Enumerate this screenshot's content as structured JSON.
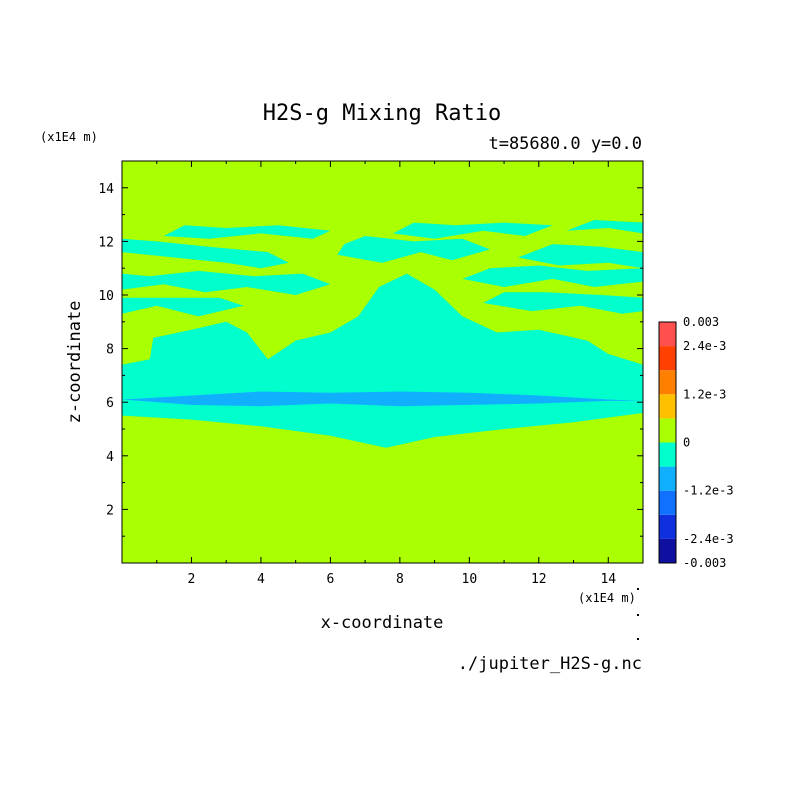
{
  "chart_data": {
    "type": "heatmap",
    "title": "H2S-g Mixing Ratio",
    "subtitle": "t=85680.0 y=0.0",
    "xlabel": "x-coordinate",
    "ylabel": "z-coordinate",
    "x_unit": "(x1E4 m)",
    "y_unit": "(x1E4 m)",
    "xlim": [
      0,
      15
    ],
    "ylim": [
      0,
      15
    ],
    "x_ticks": [
      "2",
      "4",
      "6",
      "8",
      "10",
      "12",
      "14"
    ],
    "y_ticks": [
      "2",
      "4",
      "6",
      "8",
      "10",
      "12",
      "14"
    ],
    "x_tick_values": [
      2,
      4,
      6,
      8,
      10,
      12,
      14
    ],
    "y_tick_values": [
      2,
      4,
      6,
      8,
      10,
      12,
      14
    ],
    "source_file": "./jupiter_H2S-g.nc",
    "colorbar": {
      "levels": [
        -0.003,
        -0.0024,
        -0.0018,
        -0.0012,
        -0.0006,
        0,
        0.0006,
        0.0012,
        0.0018,
        0.0024,
        0.003
      ],
      "colors": [
        "#1010a0",
        "#1030e0",
        "#1070ff",
        "#10b0ff",
        "#00ffcc",
        "#aaff00",
        "#ffc000",
        "#ff8000",
        "#ff4000",
        "#ff5050"
      ],
      "labels": [
        {
          "text": "0.003",
          "value": 0.003
        },
        {
          "text": "2.4e-3",
          "value": 0.0024
        },
        {
          "text": "1.2e-3",
          "value": 0.0012
        },
        {
          "text": "0",
          "value": 0
        },
        {
          "text": "-1.2e-3",
          "value": -0.0012
        },
        {
          "text": "-2.4e-3",
          "value": -0.0024
        },
        {
          "text": "-0.003",
          "value": -0.003
        }
      ]
    },
    "regions": {
      "background_level": 0.0003,
      "negative_level": -0.0003,
      "strong_negative_level": -0.0009,
      "cyan_bottom_boundary": [
        [
          0,
          5.5
        ],
        [
          2,
          5.35
        ],
        [
          4,
          5.1
        ],
        [
          6,
          4.75
        ],
        [
          7.6,
          4.3
        ],
        [
          9,
          4.7
        ],
        [
          11,
          5.0
        ],
        [
          13,
          5.25
        ],
        [
          15,
          5.6
        ]
      ],
      "blue_band_top": [
        [
          0,
          6.1
        ],
        [
          2,
          6.25
        ],
        [
          4,
          6.4
        ],
        [
          6,
          6.35
        ],
        [
          8,
          6.4
        ],
        [
          10,
          6.35
        ],
        [
          12,
          6.25
        ],
        [
          14,
          6.1
        ],
        [
          15,
          6.05
        ]
      ],
      "blue_band_bottom": [
        [
          0,
          6.1
        ],
        [
          2,
          5.9
        ],
        [
          4,
          5.85
        ],
        [
          6,
          5.95
        ],
        [
          8,
          5.85
        ],
        [
          10,
          5.9
        ],
        [
          12,
          5.95
        ],
        [
          14,
          6.05
        ],
        [
          15,
          6.05
        ]
      ],
      "cyan_top_boundary": [
        [
          0,
          7.4
        ],
        [
          0.8,
          7.6
        ],
        [
          0.9,
          8.4
        ],
        [
          2,
          8.7
        ],
        [
          3,
          9.0
        ],
        [
          3.6,
          8.6
        ],
        [
          4.2,
          7.6
        ],
        [
          5,
          8.3
        ],
        [
          6,
          8.6
        ],
        [
          6.8,
          9.2
        ],
        [
          7.4,
          10.3
        ],
        [
          8.2,
          10.8
        ],
        [
          9,
          10.2
        ],
        [
          9.8,
          9.2
        ],
        [
          10.8,
          8.6
        ],
        [
          12,
          8.7
        ],
        [
          13.4,
          8.3
        ],
        [
          14,
          7.8
        ],
        [
          15,
          7.4
        ]
      ],
      "streaks": [
        [
          [
            0,
            11.6
          ],
          [
            1.5,
            11.4
          ],
          [
            3,
            11.2
          ],
          [
            4,
            11.0
          ],
          [
            4.8,
            11.2
          ],
          [
            4.2,
            11.6
          ],
          [
            2.5,
            11.8
          ],
          [
            1,
            12.0
          ],
          [
            0,
            12.1
          ]
        ],
        [
          [
            1.2,
            12.2
          ],
          [
            2.5,
            12.1
          ],
          [
            4,
            12.3
          ],
          [
            5.5,
            12.1
          ],
          [
            6,
            12.4
          ],
          [
            4.5,
            12.6
          ],
          [
            3,
            12.5
          ],
          [
            1.8,
            12.6
          ]
        ],
        [
          [
            6.2,
            11.5
          ],
          [
            7.5,
            11.2
          ],
          [
            8.6,
            11.6
          ],
          [
            9.5,
            11.3
          ],
          [
            10.6,
            11.7
          ],
          [
            9.8,
            12.1
          ],
          [
            8.4,
            12.0
          ],
          [
            7.0,
            12.2
          ],
          [
            6.4,
            11.9
          ]
        ],
        [
          [
            7.8,
            12.3
          ],
          [
            9,
            12.1
          ],
          [
            10.4,
            12.4
          ],
          [
            11.6,
            12.2
          ],
          [
            12.4,
            12.6
          ],
          [
            11.0,
            12.7
          ],
          [
            9.6,
            12.6
          ],
          [
            8.4,
            12.7
          ]
        ],
        [
          [
            11.4,
            11.4
          ],
          [
            12.6,
            11.1
          ],
          [
            14,
            11.2
          ],
          [
            15,
            11.0
          ],
          [
            15,
            11.6
          ],
          [
            13.8,
            11.8
          ],
          [
            12.4,
            11.9
          ]
        ],
        [
          [
            12.8,
            12.4
          ],
          [
            14,
            12.5
          ],
          [
            15,
            12.3
          ],
          [
            15,
            12.7
          ],
          [
            13.6,
            12.8
          ]
        ],
        [
          [
            0,
            10.2
          ],
          [
            1.2,
            10.4
          ],
          [
            2.4,
            10.1
          ],
          [
            3.6,
            10.3
          ],
          [
            5.0,
            10.0
          ],
          [
            6.0,
            10.4
          ],
          [
            5.2,
            10.8
          ],
          [
            3.8,
            10.7
          ],
          [
            2.2,
            10.9
          ],
          [
            0.8,
            10.7
          ],
          [
            0,
            10.8
          ]
        ],
        [
          [
            0,
            9.3
          ],
          [
            1.0,
            9.6
          ],
          [
            2.2,
            9.2
          ],
          [
            3.5,
            9.6
          ],
          [
            2.8,
            9.9
          ],
          [
            1.4,
            9.9
          ],
          [
            0,
            9.9
          ]
        ],
        [
          [
            9.8,
            10.6
          ],
          [
            11,
            10.3
          ],
          [
            12.4,
            10.6
          ],
          [
            13.6,
            10.3
          ],
          [
            15,
            10.5
          ],
          [
            15,
            11.0
          ],
          [
            13.4,
            10.9
          ],
          [
            12,
            11.1
          ],
          [
            10.6,
            11.0
          ]
        ],
        [
          [
            10.4,
            9.7
          ],
          [
            11.8,
            9.4
          ],
          [
            13.2,
            9.6
          ],
          [
            14.4,
            9.3
          ],
          [
            15,
            9.4
          ],
          [
            15,
            9.9
          ],
          [
            13.8,
            10.0
          ],
          [
            12.2,
            10.1
          ],
          [
            11,
            10.1
          ]
        ]
      ]
    }
  }
}
